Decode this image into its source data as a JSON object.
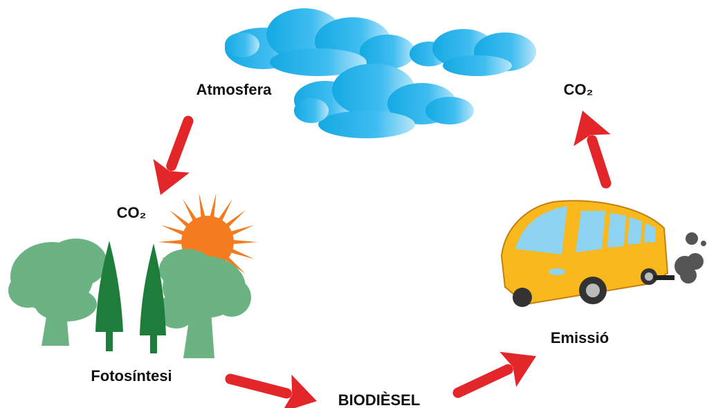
{
  "labels": {
    "atmosphere": "Atmosfera",
    "co2_top": "CO₂",
    "co2_left": "CO₂",
    "photosynthesis": "Fotosíntesi",
    "biodiesel": "BIODIÈSEL",
    "emission": "Emissió"
  }
}
